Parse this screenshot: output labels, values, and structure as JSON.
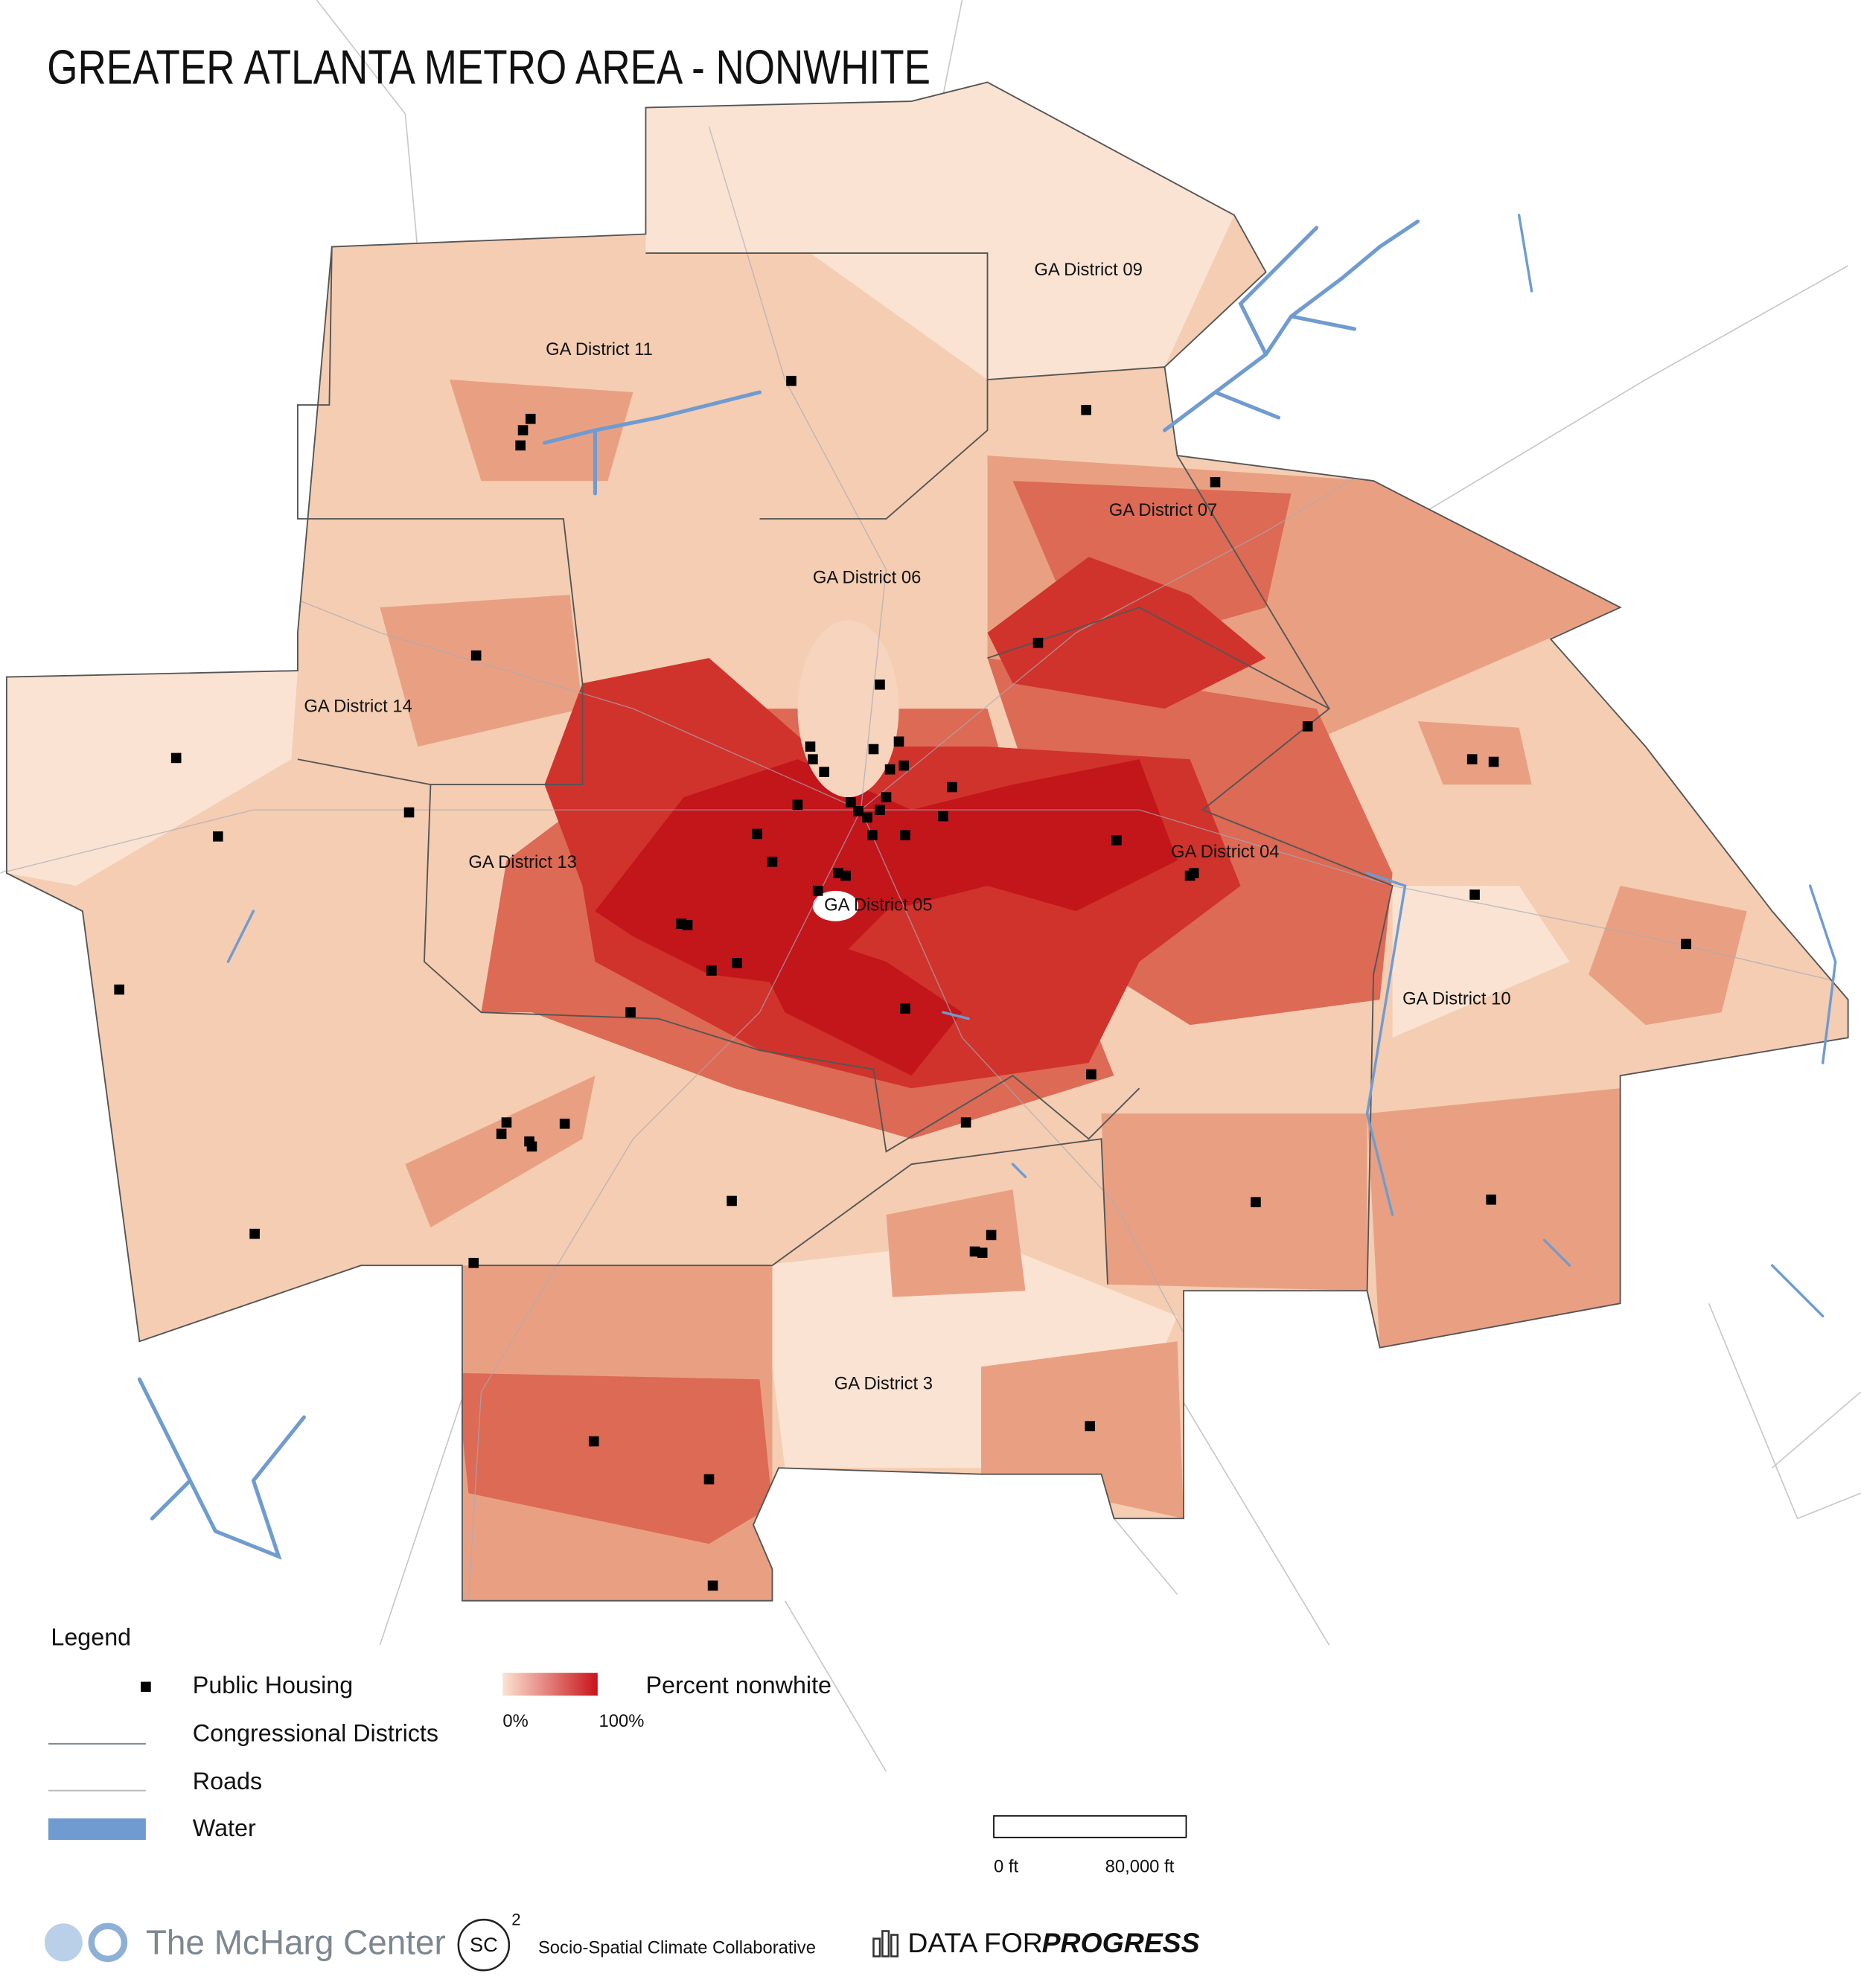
{
  "title": "GREATER ATLANTA METRO AREA - NONWHITE",
  "district_labels": [
    "GA District 09",
    "GA District 11",
    "GA District 07",
    "GA District 06",
    "GA District 14",
    "GA District 04",
    "GA District 13",
    "GA District 05",
    "GA District 10",
    "GA District 3"
  ],
  "legend": {
    "title": "Legend",
    "items": [
      "Public Housing",
      "Congressional Districts",
      "Roads",
      "Water"
    ],
    "gradient": {
      "label": "Percent nonwhite",
      "min": "0%",
      "max": "100%"
    }
  },
  "scale_bar": {
    "start": "0 ft",
    "end": "80,000 ft"
  },
  "footer": {
    "mcharg": "The McHarg Center",
    "sc": "SC",
    "sc_sup": "2",
    "sc_name": "Socio-Spatial Climate Collaborative",
    "dfp_1": "DATA FOR",
    "dfp_2": "PROGRESS"
  }
}
